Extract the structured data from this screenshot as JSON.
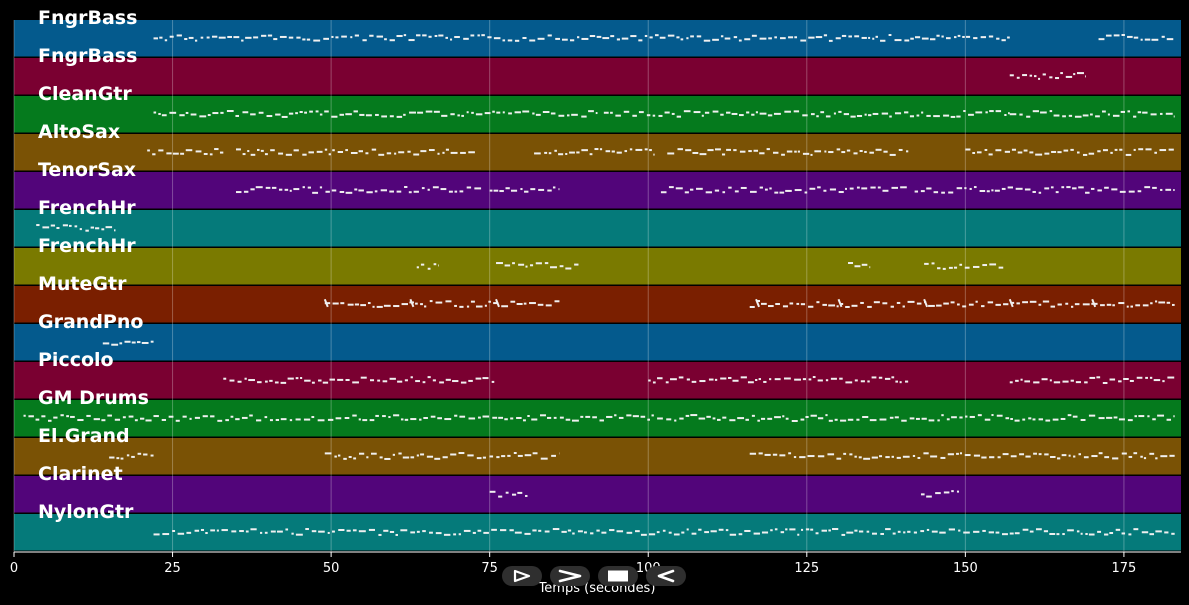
{
  "chart_data": {
    "type": "piano-roll",
    "xlabel": "Temps (secondes)",
    "xlim": [
      0,
      184
    ],
    "x_ticks": [
      0,
      25,
      50,
      75,
      100,
      125,
      150,
      175
    ],
    "grid": true,
    "tracks": [
      {
        "name": "FngrBass",
        "color": "#045a8d",
        "segments": [
          [
            22,
            157
          ],
          [
            171,
            183
          ]
        ]
      },
      {
        "name": "FngrBass",
        "color": "#7a0031",
        "segments": [
          [
            157,
            169
          ]
        ]
      },
      {
        "name": "CleanGtr",
        "color": "#057a1d",
        "segments": [
          [
            22,
            92
          ],
          [
            93,
            157
          ],
          [
            157,
            183
          ]
        ]
      },
      {
        "name": "AltoSax",
        "color": "#7a5205",
        "segments": [
          [
            21,
            33
          ],
          [
            35,
            73
          ],
          [
            82,
            101
          ],
          [
            103,
            141
          ],
          [
            150,
            183
          ]
        ]
      },
      {
        "name": "TenorSax",
        "color": "#52057a",
        "segments": [
          [
            35,
            74
          ],
          [
            75,
            86
          ],
          [
            102,
            141
          ],
          [
            142,
            183
          ]
        ]
      },
      {
        "name": "FrenchHr",
        "color": "#057a7a",
        "segments": [
          [
            3.5,
            16
          ]
        ]
      },
      {
        "name": "FrenchHr",
        "color": "#7a7a00",
        "segments": [
          [
            63.5,
            67
          ],
          [
            76,
            89
          ],
          [
            131.5,
            135
          ],
          [
            143.5,
            156
          ]
        ]
      },
      {
        "name": "MuteGtr",
        "color": "#7a1f00",
        "segments": [
          [
            49,
            86
          ],
          [
            116,
            183
          ]
        ]
      },
      {
        "name": "GrandPno",
        "color": "#045a8d",
        "segments": [
          [
            14,
            22
          ]
        ]
      },
      {
        "name": "Piccolo",
        "color": "#7a0031",
        "segments": [
          [
            33,
            76
          ],
          [
            100,
            141
          ],
          [
            157,
            183
          ]
        ]
      },
      {
        "name": "GM Drums",
        "color": "#057a1d",
        "segments": [
          [
            1.5,
            183
          ]
        ]
      },
      {
        "name": "El.Grand",
        "color": "#7a5205",
        "segments": [
          [
            15,
            22
          ],
          [
            49,
            86
          ],
          [
            116,
            183
          ]
        ]
      },
      {
        "name": "Clarinet",
        "color": "#52057a",
        "segments": [
          [
            75,
            81
          ],
          [
            143,
            149
          ]
        ]
      },
      {
        "name": "NylonGtr",
        "color": "#057a7a",
        "segments": [
          [
            22,
            157
          ],
          [
            157,
            183
          ]
        ]
      }
    ],
    "isolated_marks": [
      {
        "track": 7,
        "x": [
          49,
          62.5,
          76,
          117,
          130,
          143.5,
          157,
          170
        ]
      }
    ]
  },
  "controls": {
    "play_icon": "play-icon",
    "forward_icon": "fast-forward-icon",
    "stop_icon": "stop-icon",
    "rewind_icon": "rewind-icon"
  }
}
